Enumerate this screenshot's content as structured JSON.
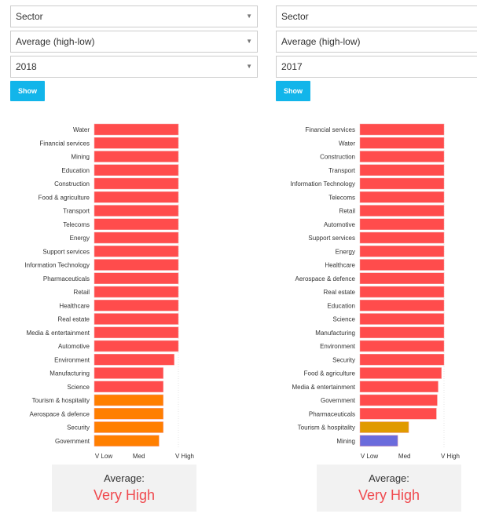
{
  "colors": {
    "very_high": "#ff4c4c",
    "high_orange": "#ff7f00",
    "amber": "#e09a00",
    "low_blue": "#6b6bdc",
    "button": "#12b5ea",
    "average_text": "#f04a4f"
  },
  "panels": [
    {
      "selects": [
        "Sector",
        "Average (high-low)",
        "2018"
      ],
      "button_label": "Show",
      "average_label": "Average:",
      "average_value": "Very High"
    },
    {
      "selects": [
        "Sector",
        "Average (high-low)",
        "2017"
      ],
      "button_label": "Show",
      "average_label": "Average:",
      "average_value": "Very High"
    }
  ],
  "chart_data": [
    {
      "type": "bar",
      "orientation": "horizontal",
      "x_tick_labels": [
        "V Low",
        "Med",
        "V High"
      ],
      "categories": [
        "Water",
        "Financial services",
        "Mining",
        "Education",
        "Construction",
        "Food & agriculture",
        "Transport",
        "Telecoms",
        "Energy",
        "Support services",
        "Information Technology",
        "Pharmaceuticals",
        "Retail",
        "Healthcare",
        "Real estate",
        "Media & entertainment",
        "Automotive",
        "Environment",
        "Manufacturing",
        "Science",
        "Tourism & hospitality",
        "Aerospace & defence",
        "Security",
        "Government"
      ],
      "values": [
        1.0,
        1.0,
        1.0,
        1.0,
        1.0,
        1.0,
        1.0,
        1.0,
        1.0,
        1.0,
        1.0,
        1.0,
        1.0,
        1.0,
        1.0,
        1.0,
        1.0,
        0.95,
        0.82,
        0.82,
        0.82,
        0.82,
        0.82,
        0.77
      ],
      "colors": [
        "#ff4c4c",
        "#ff4c4c",
        "#ff4c4c",
        "#ff4c4c",
        "#ff4c4c",
        "#ff4c4c",
        "#ff4c4c",
        "#ff4c4c",
        "#ff4c4c",
        "#ff4c4c",
        "#ff4c4c",
        "#ff4c4c",
        "#ff4c4c",
        "#ff4c4c",
        "#ff4c4c",
        "#ff4c4c",
        "#ff4c4c",
        "#ff4c4c",
        "#ff4c4c",
        "#ff4c4c",
        "#ff7f00",
        "#ff7f00",
        "#ff7f00",
        "#ff7f00"
      ],
      "xlim": [
        0,
        1
      ]
    },
    {
      "type": "bar",
      "orientation": "horizontal",
      "x_tick_labels": [
        "V Low",
        "Med",
        "V High"
      ],
      "categories": [
        "Financial services",
        "Water",
        "Construction",
        "Transport",
        "Information Technology",
        "Telecoms",
        "Retail",
        "Automotive",
        "Support services",
        "Energy",
        "Healthcare",
        "Aerospace & defence",
        "Real estate",
        "Education",
        "Science",
        "Manufacturing",
        "Environment",
        "Security",
        "Food & agriculture",
        "Media & entertainment",
        "Government",
        "Pharmaceuticals",
        "Tourism & hospitality",
        "Mining"
      ],
      "values": [
        1.0,
        1.0,
        1.0,
        1.0,
        1.0,
        1.0,
        1.0,
        1.0,
        1.0,
        1.0,
        1.0,
        1.0,
        1.0,
        1.0,
        1.0,
        1.0,
        1.0,
        1.0,
        0.97,
        0.93,
        0.92,
        0.91,
        0.58,
        0.45
      ],
      "colors": [
        "#ff4c4c",
        "#ff4c4c",
        "#ff4c4c",
        "#ff4c4c",
        "#ff4c4c",
        "#ff4c4c",
        "#ff4c4c",
        "#ff4c4c",
        "#ff4c4c",
        "#ff4c4c",
        "#ff4c4c",
        "#ff4c4c",
        "#ff4c4c",
        "#ff4c4c",
        "#ff4c4c",
        "#ff4c4c",
        "#ff4c4c",
        "#ff4c4c",
        "#ff4c4c",
        "#ff4c4c",
        "#ff4c4c",
        "#ff4c4c",
        "#e09a00",
        "#6b6bdc"
      ],
      "xlim": [
        0,
        1
      ]
    }
  ]
}
